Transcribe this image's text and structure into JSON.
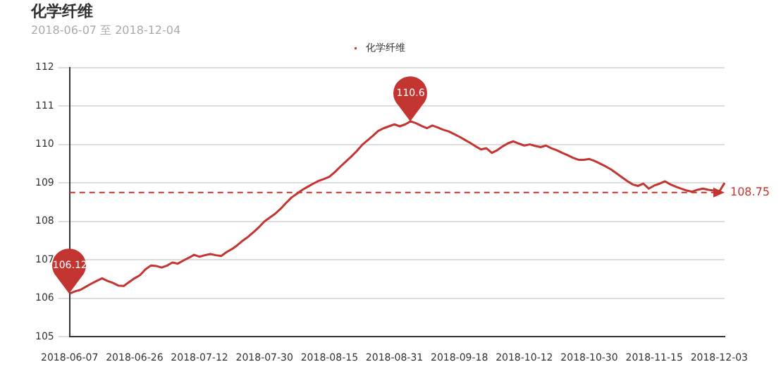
{
  "chart_data": {
    "type": "line",
    "title": "化学纤维",
    "subtitle": "2018-06-07 至 2018-12-04",
    "categories": [
      "2018-06-07",
      null,
      null,
      null,
      null,
      null,
      null,
      null,
      null,
      null,
      null,
      null,
      "2018-06-26",
      null,
      null,
      null,
      null,
      null,
      null,
      null,
      null,
      null,
      null,
      null,
      "2018-07-12",
      null,
      null,
      null,
      null,
      null,
      null,
      null,
      null,
      null,
      null,
      null,
      "2018-07-30",
      null,
      null,
      null,
      null,
      null,
      null,
      null,
      null,
      null,
      null,
      null,
      "2018-08-15",
      null,
      null,
      null,
      null,
      null,
      null,
      null,
      null,
      null,
      null,
      null,
      "2018-08-31",
      null,
      null,
      null,
      null,
      null,
      null,
      null,
      null,
      null,
      null,
      null,
      "2018-09-18",
      null,
      null,
      null,
      null,
      null,
      null,
      null,
      null,
      null,
      null,
      null,
      "2018-10-12",
      null,
      null,
      null,
      null,
      null,
      null,
      null,
      null,
      null,
      null,
      null,
      "2018-10-30",
      null,
      null,
      null,
      null,
      null,
      null,
      null,
      null,
      null,
      null,
      null,
      "2018-11-15",
      null,
      null,
      null,
      null,
      null,
      null,
      null,
      null,
      null,
      null,
      null,
      "2018-12-03",
      null
    ],
    "series": [
      {
        "name": "化学纤维",
        "color": "#c23531",
        "values": [
          106.12,
          106.18,
          106.22,
          106.3,
          106.38,
          106.45,
          106.52,
          106.45,
          106.4,
          106.33,
          106.32,
          106.42,
          106.52,
          106.6,
          106.75,
          106.85,
          106.84,
          106.8,
          106.85,
          106.93,
          106.9,
          106.98,
          107.05,
          107.13,
          107.08,
          107.12,
          107.15,
          107.12,
          107.1,
          107.2,
          107.28,
          107.38,
          107.5,
          107.6,
          107.72,
          107.85,
          108.0,
          108.1,
          108.2,
          108.33,
          108.48,
          108.62,
          108.72,
          108.82,
          108.9,
          108.98,
          109.05,
          109.1,
          109.16,
          109.28,
          109.42,
          109.55,
          109.68,
          109.82,
          109.98,
          110.1,
          110.22,
          110.35,
          110.42,
          110.47,
          110.52,
          110.47,
          110.52,
          110.6,
          110.55,
          110.48,
          110.42,
          110.49,
          110.44,
          110.38,
          110.34,
          110.27,
          110.2,
          110.12,
          110.04,
          109.95,
          109.87,
          109.9,
          109.78,
          109.85,
          109.95,
          110.03,
          110.08,
          110.02,
          109.97,
          110.0,
          109.96,
          109.93,
          109.97,
          109.9,
          109.85,
          109.78,
          109.72,
          109.65,
          109.6,
          109.6,
          109.62,
          109.57,
          109.5,
          109.43,
          109.35,
          109.25,
          109.15,
          109.05,
          108.96,
          108.92,
          108.98,
          108.85,
          108.93,
          108.98,
          109.04,
          108.96,
          108.9,
          108.85,
          108.8,
          108.77,
          108.82,
          108.85,
          108.82,
          108.8,
          108.77,
          109.0
        ]
      }
    ],
    "ylim": [
      105,
      112
    ],
    "yticks": [
      105,
      106,
      107,
      108,
      109,
      110,
      111,
      112
    ],
    "grid": "y",
    "legend": "top",
    "marker": "none",
    "line_style": "solid",
    "ref_lines": [
      {
        "axis": "y",
        "value": 108.75,
        "label": "108.75",
        "color": "#c23531",
        "line_style": "dashed"
      }
    ],
    "annotations": [
      {
        "text": "106.12",
        "x": "2018-06-07",
        "y": 106.12
      },
      {
        "text": "110.6",
        "y": 110.6
      }
    ]
  }
}
